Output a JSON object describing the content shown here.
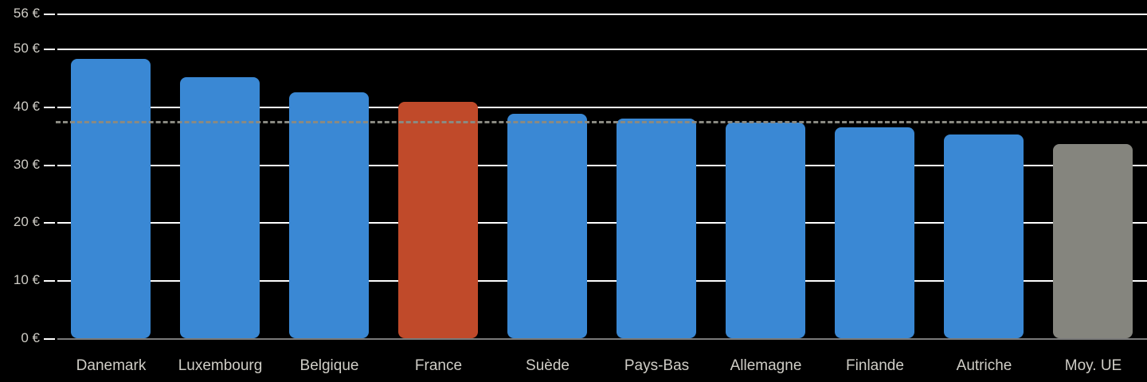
{
  "chart_data": {
    "type": "bar",
    "title": "",
    "xlabel": "",
    "ylabel": "",
    "ylim": [
      0,
      56
    ],
    "yticks": [
      0,
      10,
      20,
      30,
      40,
      50,
      56
    ],
    "ytick_labels": [
      "0 €",
      "10 €",
      "20 €",
      "30 €",
      "40 €",
      "50 €",
      "56 €"
    ],
    "grid": true,
    "legend": null,
    "categories": [
      "Danemark",
      "Luxembourg",
      "Belgique",
      "France",
      "Suède",
      "Pays-Bas",
      "Allemagne",
      "Finlande",
      "Autriche",
      "Moy. UE"
    ],
    "values": [
      48.2,
      45.1,
      42.4,
      40.8,
      38.7,
      37.9,
      37.2,
      36.4,
      35.2,
      33.5
    ],
    "bar_colors": [
      "#3a88d4",
      "#3a88d4",
      "#3a88d4",
      "#c04a2a",
      "#3a88d4",
      "#3a88d4",
      "#3a88d4",
      "#3a88d4",
      "#3a88d4",
      "#85857e"
    ],
    "reference_line": {
      "style": "dashed",
      "value": 37.3,
      "color": "#8a8a82"
    }
  },
  "colors": {
    "background": "#000000",
    "bar_default": "#3a88d4",
    "bar_highlight": "#c04a2a",
    "bar_average": "#85857e",
    "text": "#cfcdc6",
    "gridline": "#ffffff",
    "baseline": "#7a7a7a"
  }
}
